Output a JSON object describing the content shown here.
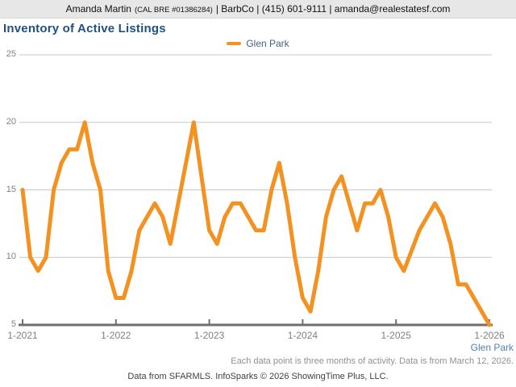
{
  "header": {
    "agent": "Amanda Martin",
    "license": "(CAL BRE #01386284)",
    "contact": "| BarbCo | (415) 601-9111 | amanda@realestatesf.com"
  },
  "title": "Inventory of Active Listings",
  "legend": {
    "series_label": "Glen Park"
  },
  "footer": {
    "series_caption": "Glen Park",
    "note": "Each data point is three months of activity. Data is from March 12, 2026.",
    "credit": "Data from SFARMLS. InfoSparks © 2026 ShowingTime Plus, LLC."
  },
  "colors": {
    "accent_orange": "#F39221",
    "title_blue": "#215083",
    "legend_text": "#44637F",
    "caption_link_blue": "#4D82B8",
    "grid_gray": "#C7C7C7",
    "axis_gray": "#6F6F6F",
    "tick_text_gray": "#808080",
    "topbar_gray": "#E7E7E7"
  },
  "chart_data": {
    "type": "line",
    "title": "Inventory of Active Listings",
    "x_start_label": "1-2021",
    "x_interval": "monthly (each point = three months of activity)",
    "xtick_labels": [
      "1-2021",
      "1-2022",
      "1-2023",
      "1-2024",
      "1-2025",
      "1-2026"
    ],
    "ytick_labels": [
      "25",
      "20",
      "15",
      "10",
      "5"
    ],
    "ylim": [
      5,
      25
    ],
    "grid": "horizontal",
    "legend_position": "top-center",
    "series": [
      {
        "name": "Glen Park",
        "color": "#F39221",
        "values": [
          15,
          10,
          9,
          10,
          15,
          17,
          18,
          18,
          20,
          17,
          15,
          9,
          7,
          7,
          9,
          12,
          13,
          14,
          13,
          11,
          14,
          17,
          20,
          16,
          12,
          11,
          13,
          14,
          14,
          13,
          12,
          12,
          15,
          17,
          14,
          10,
          7,
          6,
          9,
          13,
          15,
          16,
          14,
          12,
          14,
          14,
          15,
          13,
          10,
          9,
          10.5,
          12,
          13,
          14,
          13,
          11,
          8,
          8,
          7,
          6,
          5
        ]
      }
    ]
  }
}
